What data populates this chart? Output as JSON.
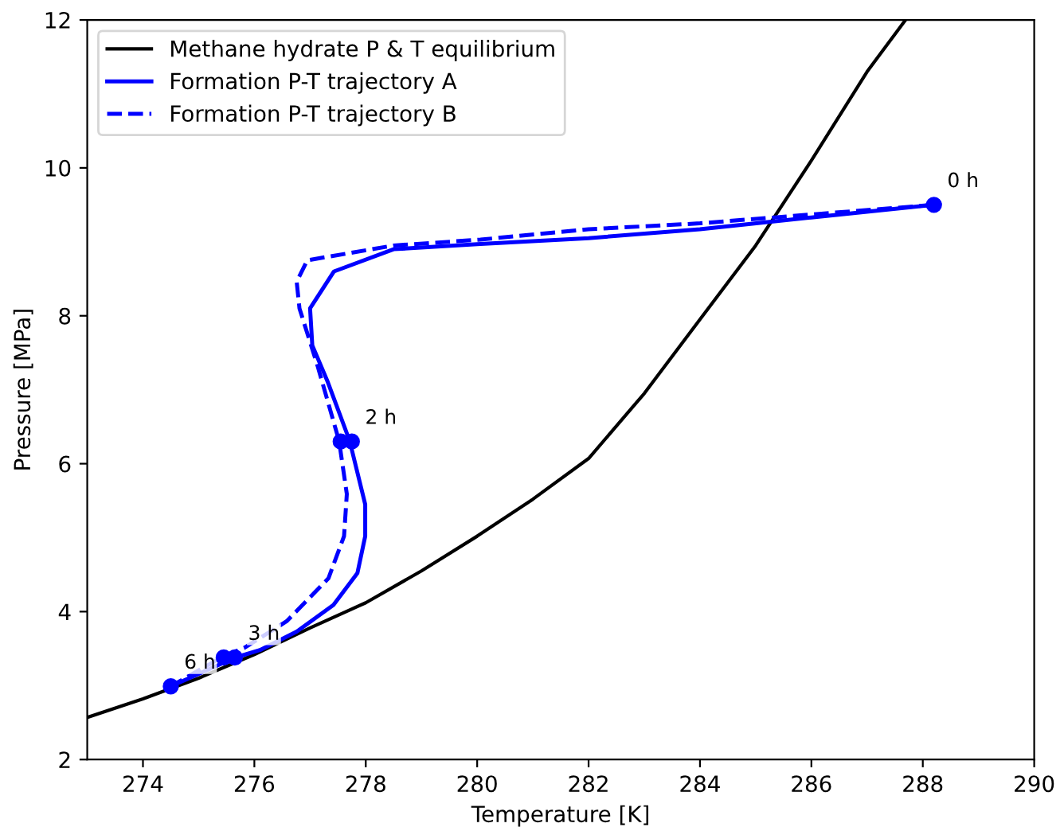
{
  "chart_data": {
    "type": "line",
    "xlabel": "Temperature [K]",
    "ylabel": "Pressure [MPa]",
    "xlim": [
      273,
      290
    ],
    "ylim": [
      2,
      12
    ],
    "xticks": [
      274,
      276,
      278,
      280,
      282,
      284,
      286,
      288,
      290
    ],
    "yticks": [
      2,
      4,
      6,
      8,
      10,
      12
    ],
    "grid": false,
    "legend": "top left",
    "series": [
      {
        "name": "Methane hydrate P & T equilibrium",
        "color": "#000000",
        "line_style": "solid",
        "x": [
          273,
          274,
          275,
          276,
          277,
          278,
          279,
          280,
          281,
          282,
          283,
          284,
          285,
          286,
          287,
          287.69
        ],
        "values": [
          2.57,
          2.82,
          3.1,
          3.42,
          3.78,
          4.12,
          4.55,
          5.02,
          5.52,
          6.07,
          6.95,
          7.95,
          8.95,
          10.1,
          11.3,
          12.0
        ]
      },
      {
        "name": "Formation P-T trajectory A",
        "color": "#0000ff",
        "line_style": "solid",
        "x": [
          288.2,
          286,
          284,
          282,
          280.06,
          278.5,
          277.43,
          277.0,
          277.04,
          277.32,
          277.71,
          277.99,
          277.99,
          277.85,
          277.42,
          276.76,
          276.1,
          275.66,
          274.5
        ],
        "values": [
          9.5,
          9.33,
          9.17,
          9.05,
          8.97,
          8.9,
          8.6,
          8.1,
          7.6,
          7.1,
          6.31,
          5.45,
          5.02,
          4.52,
          4.09,
          3.73,
          3.48,
          3.38,
          2.99
        ]
      },
      {
        "name": "Formation P-T trajectory B",
        "color": "#0000ff",
        "line_style": "dashed",
        "x": [
          288.2,
          286,
          284,
          282,
          280.06,
          278.5,
          276.95,
          276.76,
          276.81,
          277.14,
          277.52,
          277.66,
          277.61,
          277.33,
          276.58,
          275.82,
          275.43,
          274.5
        ],
        "values": [
          9.5,
          9.37,
          9.25,
          9.17,
          9.03,
          8.95,
          8.75,
          8.46,
          8.1,
          7.31,
          6.31,
          5.59,
          5.02,
          4.45,
          3.87,
          3.51,
          3.39,
          2.99
        ]
      },
      {
        "type": "scatter",
        "marker": "circle",
        "color": "#0000ff",
        "x": [
          288.2,
          277.75,
          275.65,
          274.5
        ],
        "values": [
          9.5,
          6.3,
          3.38,
          2.99
        ]
      },
      {
        "type": "scatter",
        "marker": "circle",
        "color": "#0000ff",
        "x": [
          277.55,
          275.45
        ],
        "values": [
          6.3,
          3.38
        ]
      }
    ],
    "annotations": [
      {
        "text": "0 h",
        "x": 288.2,
        "y": 9.5
      },
      {
        "text": "2 h",
        "x": 277.75,
        "y": 6.3
      },
      {
        "text": "3 h",
        "x": 275.65,
        "y": 3.38
      },
      {
        "text": "6 h",
        "x": 274.5,
        "y": 2.99
      }
    ]
  }
}
